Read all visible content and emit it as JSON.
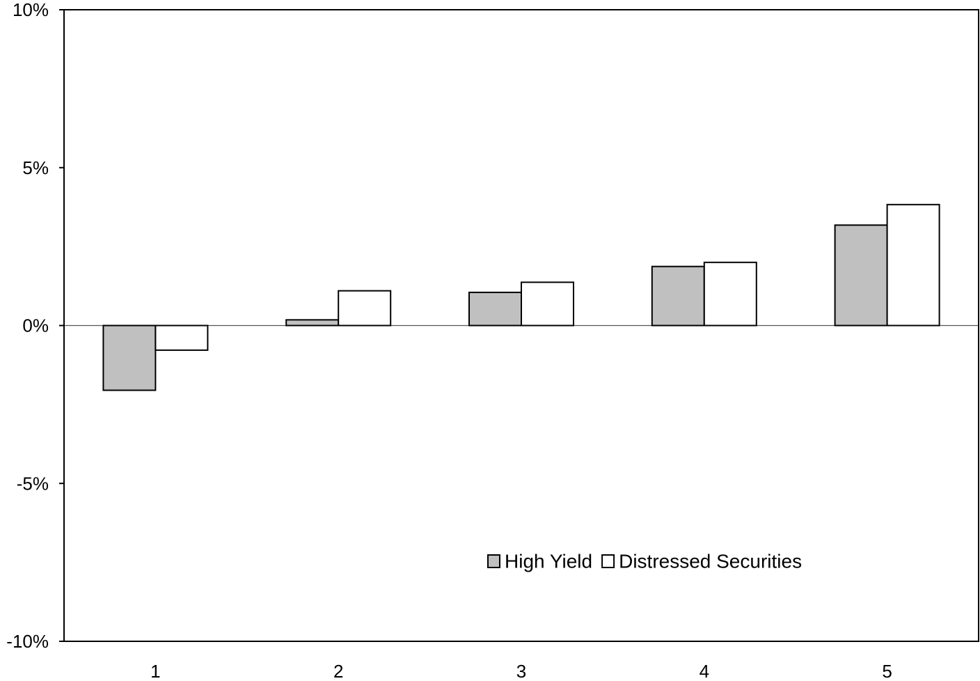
{
  "chart_data": {
    "type": "bar",
    "categories": [
      "1",
      "2",
      "3",
      "4",
      "5"
    ],
    "series": [
      {
        "name": "High Yield",
        "values": [
          -2.05,
          0.18,
          1.05,
          1.87,
          3.18
        ],
        "color": "#c0c0c0"
      },
      {
        "name": "Distressed Securities",
        "values": [
          -0.78,
          1.1,
          1.37,
          2.0,
          3.83
        ],
        "color": "#ffffff"
      }
    ],
    "yticks": [
      {
        "value": 10,
        "label": "10%"
      },
      {
        "value": 5,
        "label": "5%"
      },
      {
        "value": 0,
        "label": "0%"
      },
      {
        "value": -5,
        "label": "-5%"
      },
      {
        "value": -10,
        "label": "-10%"
      }
    ],
    "ylim": [
      -10,
      10
    ],
    "title": "",
    "xlabel": "",
    "ylabel": "",
    "grid": false,
    "legend_position": "bottom-center"
  }
}
